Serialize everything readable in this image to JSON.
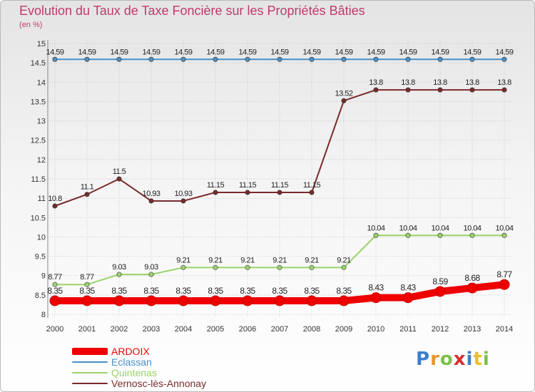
{
  "chart_data": {
    "type": "line",
    "title": "Evolution du Taux de Taxe Foncière sur les Propriétés Bâties",
    "subtitle": "(en %)",
    "xlabel": "",
    "ylabel": "(en %)",
    "ylim": [
      8,
      15
    ],
    "yticks": [
      8,
      8.5,
      9,
      9.5,
      10,
      10.5,
      11,
      11.5,
      12,
      12.5,
      13,
      13.5,
      14,
      14.5,
      15
    ],
    "ytick_labels": [
      "8",
      "8.5",
      "9",
      "9.5",
      "10",
      "10.5",
      "11",
      "11.5",
      "12",
      "12.5",
      "13",
      "13.5",
      "14",
      "14.5",
      "15"
    ],
    "grid": true,
    "legend_position": "bottom-left",
    "categories": [
      "2000",
      "2001",
      "2002",
      "2003",
      "2004",
      "2005",
      "2006",
      "2007",
      "2008",
      "2009",
      "2010",
      "2011",
      "2012",
      "2013",
      "2014"
    ],
    "series": [
      {
        "name": "ARDOIX",
        "color": "#ee0000",
        "values": [
          8.35,
          8.35,
          8.35,
          8.35,
          8.35,
          8.35,
          8.35,
          8.35,
          8.35,
          8.35,
          8.43,
          8.43,
          8.59,
          8.68,
          8.77
        ],
        "labels": [
          "8.35",
          "8.35",
          "8.35",
          "8.35",
          "8.35",
          "8.35",
          "8.35",
          "8.35",
          "8.35",
          "8.35",
          "8.43",
          "8.43",
          "8.59",
          "8.68",
          "8.77"
        ]
      },
      {
        "name": "Eclassan",
        "color": "#4a90c8",
        "values": [
          14.59,
          14.59,
          14.59,
          14.59,
          14.59,
          14.59,
          14.59,
          14.59,
          14.59,
          14.59,
          14.59,
          14.59,
          14.59,
          14.59,
          14.59
        ],
        "labels": [
          "14.59",
          "14.59",
          "14.59",
          "14.59",
          "14.59",
          "14.59",
          "14.59",
          "14.59",
          "14.59",
          "14.59",
          "14.59",
          "14.59",
          "14.59",
          "14.59",
          "14.59"
        ]
      },
      {
        "name": "Quintenas",
        "color": "#99d36a",
        "values": [
          8.77,
          8.77,
          9.03,
          9.03,
          9.21,
          9.21,
          9.21,
          9.21,
          9.21,
          9.21,
          10.04,
          10.04,
          10.04,
          10.04,
          10.04
        ],
        "labels": [
          "8.77",
          "8.77",
          "9.03",
          "9.03",
          "9.21",
          "9.21",
          "9.21",
          "9.21",
          "9.21",
          "9.21",
          "10.04",
          "10.04",
          "10.04",
          "10.04",
          "10.04"
        ]
      },
      {
        "name": "Vernosc-lès-Annonay",
        "color": "#7a2a2a",
        "values": [
          10.8,
          11.1,
          11.5,
          10.93,
          10.93,
          11.15,
          11.15,
          11.15,
          11.15,
          13.52,
          13.8,
          13.8,
          13.8,
          13.8,
          13.8
        ],
        "labels": [
          "10.8",
          "11.1",
          "11.5",
          "10.93",
          "10.93",
          "11.15",
          "11.15",
          "11.15",
          "11.15",
          "13.52",
          "13.8",
          "13.8",
          "13.8",
          "13.8",
          "13.8"
        ]
      }
    ]
  },
  "logo": {
    "text": "Proxiti"
  },
  "colors": {
    "title": "#c0396e",
    "grid": "#c8c8c8",
    "axis_text": "#333333"
  }
}
